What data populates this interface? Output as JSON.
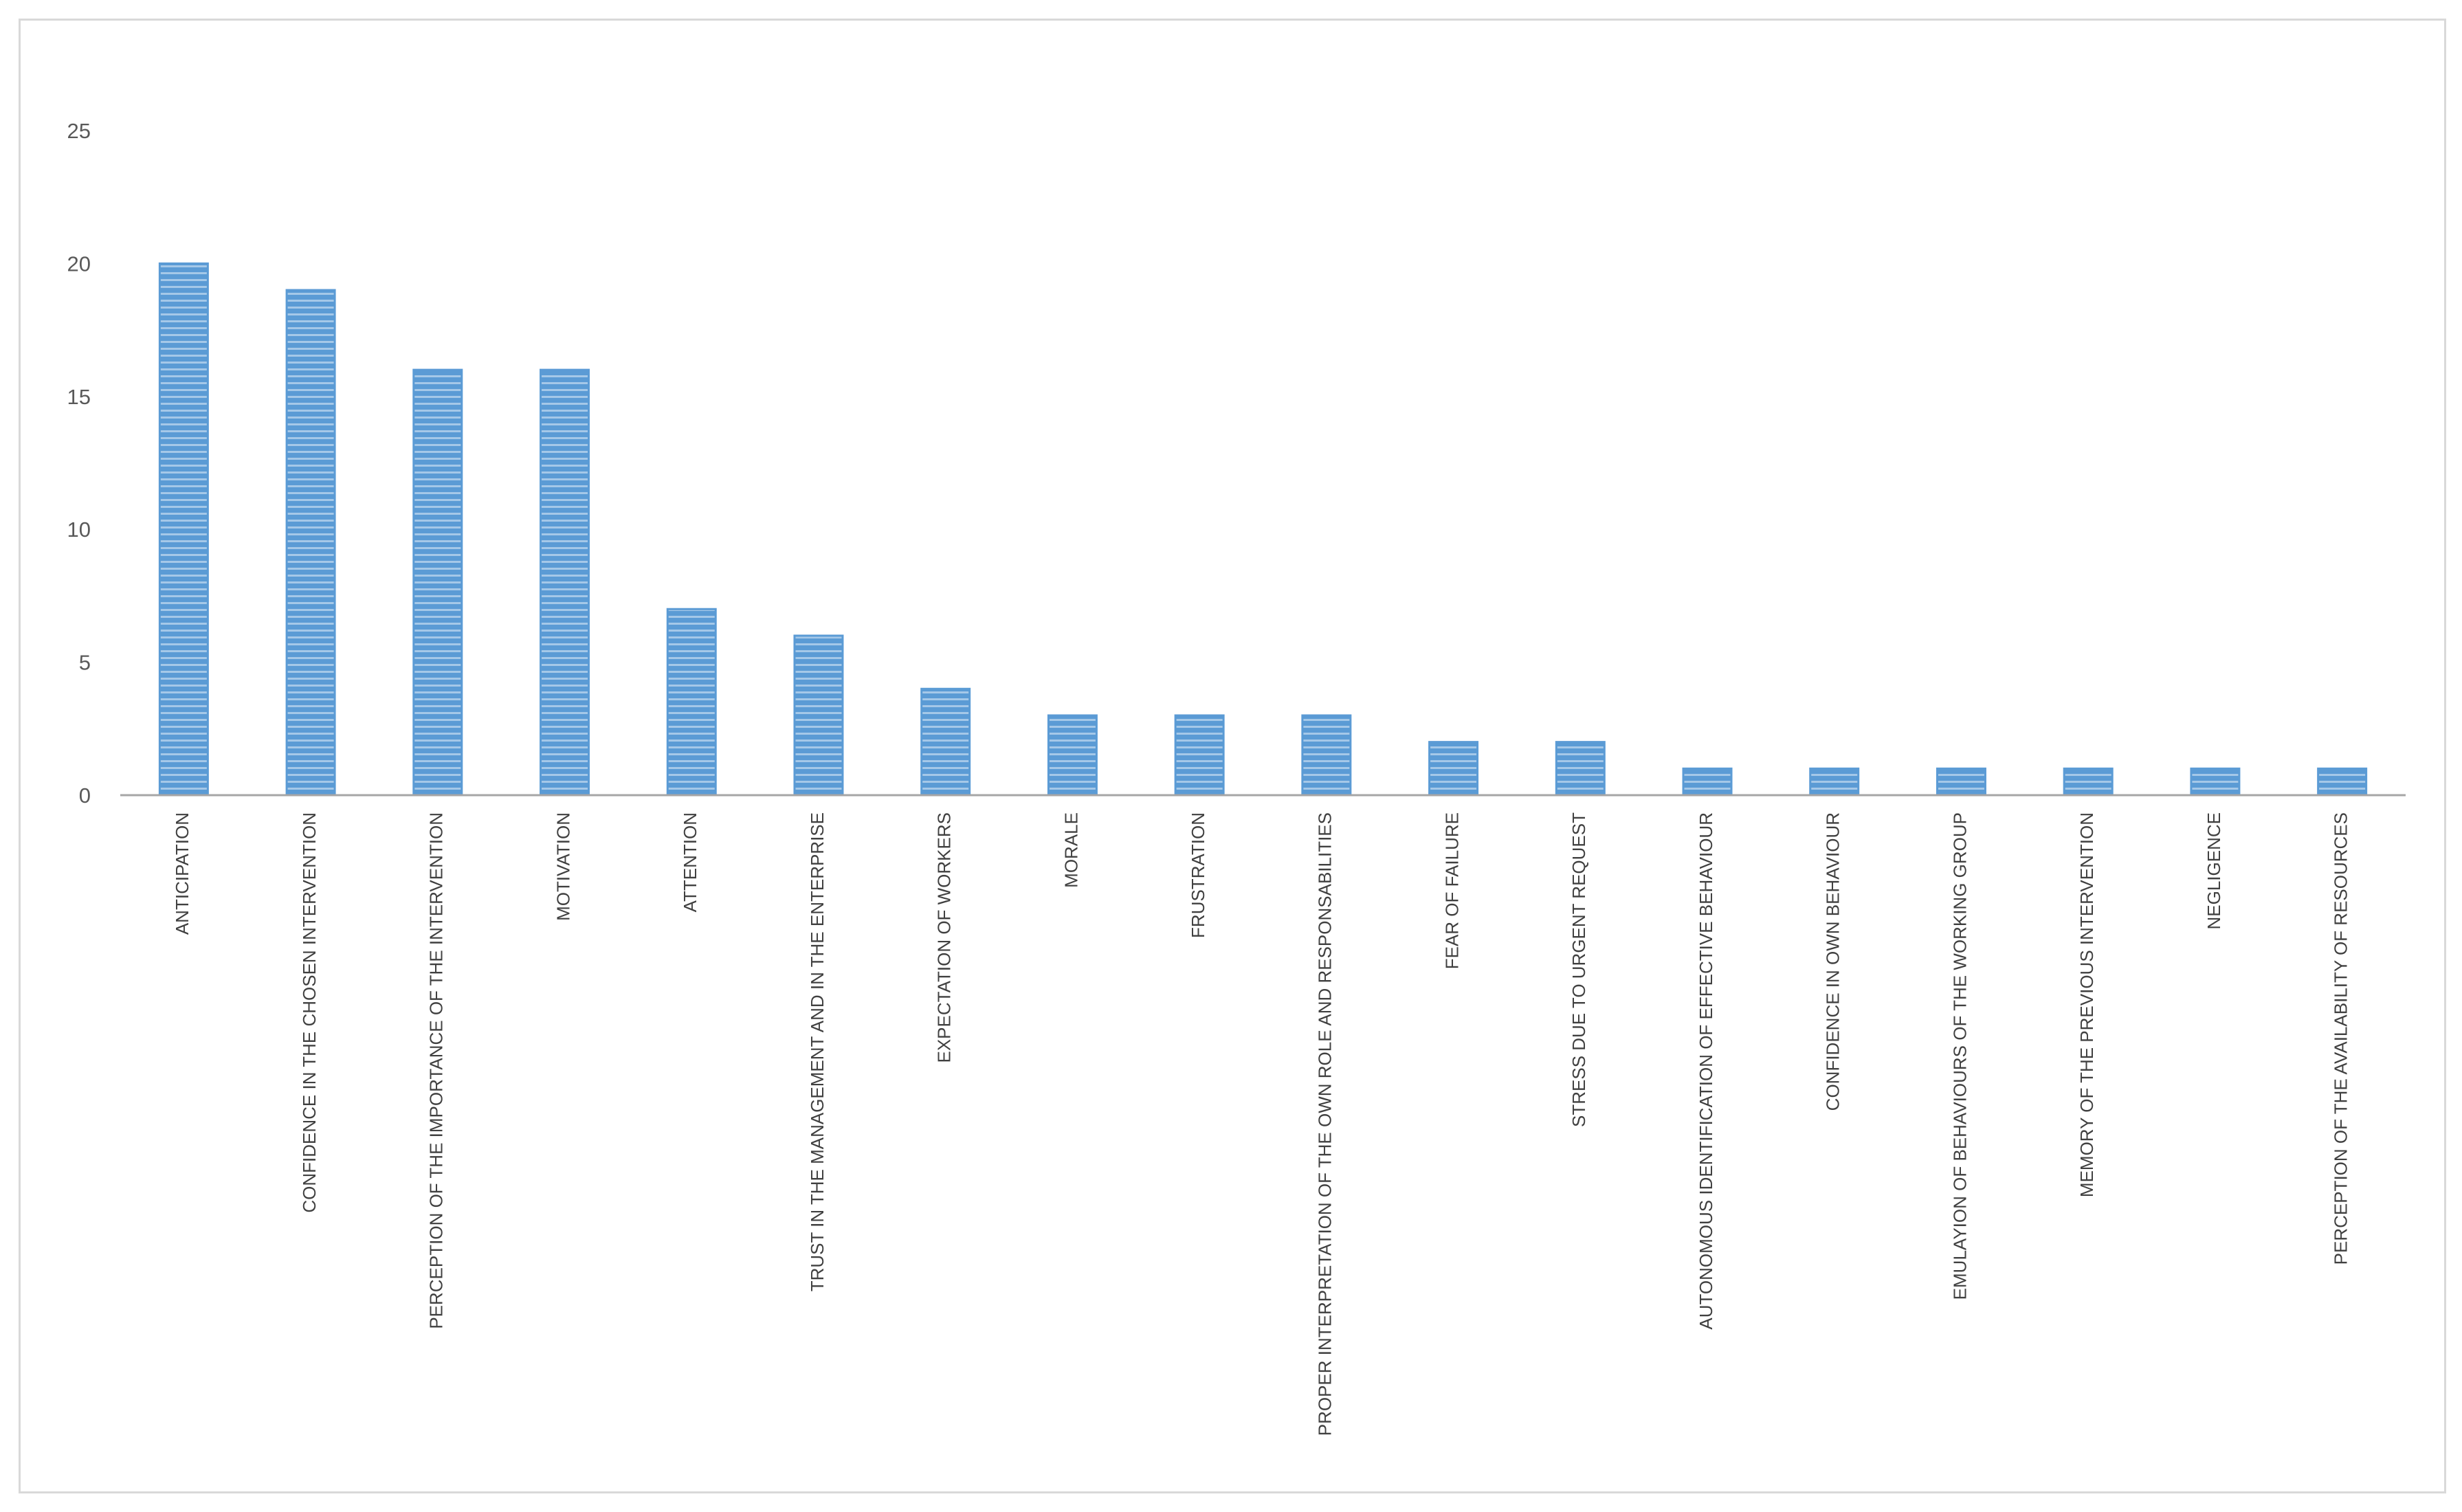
{
  "colors": {
    "bar_fill": "#5b9bd5",
    "bar_stripe": "#ffffff",
    "axis_line": "#a6a6a6",
    "tick_text": "#595959",
    "label_text": "#404040",
    "frame": "#d9d9d9"
  },
  "chart_data": {
    "type": "bar",
    "title": "",
    "xlabel": "",
    "ylabel": "",
    "ylim": [
      0,
      25
    ],
    "yticks": [
      0,
      5,
      10,
      15,
      20,
      25
    ],
    "grid": false,
    "legend": "none",
    "categories": [
      "ANTICIPATION",
      "CONFIDENCE IN THE CHOSEN INTERVENTION",
      "PERCEPTION OF THE IMPORTANCE OF THE INTERVENTION",
      "MOTIVATION",
      "ATTENTION",
      "TRUST IN THE MANAGEMENT AND IN THE ENTERPRISE",
      "EXPECTATION OF WORKERS",
      "MORALE",
      "FRUSTRATION",
      "PROPER INTERPRETATION OF THE OWN ROLE AND RESPONSABILITIES",
      "FEAR OF FAILURE",
      "STRESS DUE TO URGENT REQUEST",
      "AUTONOMOUS IDENTIFICATION OF EFFECTIVE BEHAVIOUR",
      "CONFIDENCE IN OWN BEHAVIOUR",
      "EMULAYION OF BEHAVIOURS OF THE WORKING GROUP",
      "MEMORY OF THE PREVIOUS INTERVENTION",
      "NEGLIGENCE",
      "PERCEPTION OF THE AVAILABILITY OF RESOURCES"
    ],
    "values": [
      20,
      19,
      16,
      16,
      7,
      6,
      4,
      3,
      3,
      3,
      2,
      2,
      1,
      1,
      1,
      1,
      1,
      1
    ]
  }
}
